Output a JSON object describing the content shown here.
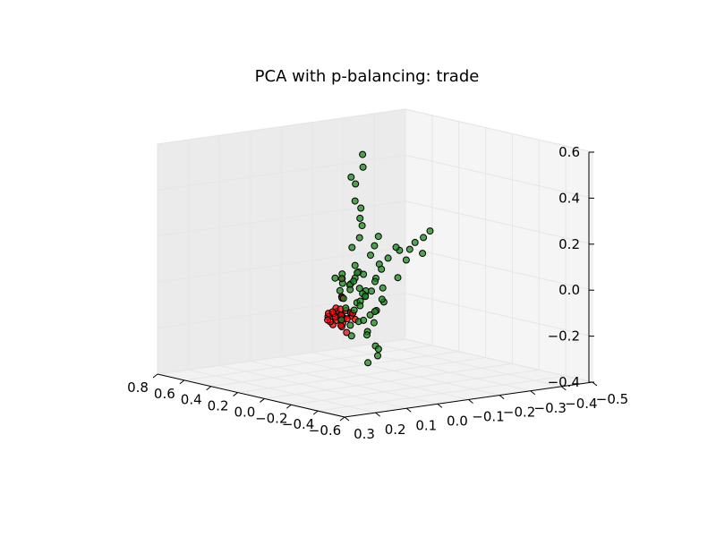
{
  "chart_data": {
    "type": "scatter",
    "title": "PCA with p-balancing: trade",
    "xlabel": "",
    "ylabel": "",
    "zlabel": "",
    "axes": {
      "x": {
        "ticks": [
          "−0.6",
          "−0.4",
          "−0.2",
          "0.0",
          "0.2",
          "0.4",
          "0.6",
          "0.8"
        ],
        "range": [
          -0.6,
          0.8
        ]
      },
      "y": {
        "ticks": [
          "0.3",
          "0.2",
          "0.1",
          "0.0",
          "−0.1",
          "−0.2",
          "−0.3",
          "−0.4",
          "−0.5"
        ],
        "range": [
          -0.5,
          0.3
        ]
      },
      "z": {
        "ticks": [
          "−0.4",
          "−0.2",
          "0.0",
          "0.2",
          "0.4",
          "0.6"
        ],
        "range": [
          -0.4,
          0.6
        ]
      }
    },
    "grid": true,
    "legend": "none",
    "series": [
      {
        "color": "#ff0000",
        "points": [
          [
            -0.45,
            0.25,
            0.0
          ],
          [
            -0.43,
            0.24,
            0.01
          ],
          [
            -0.44,
            0.26,
            -0.01
          ],
          [
            -0.42,
            0.23,
            0.0
          ],
          [
            -0.46,
            0.27,
            0.01
          ],
          [
            -0.41,
            0.22,
            -0.01
          ],
          [
            -0.4,
            0.24,
            0.02
          ],
          [
            -0.47,
            0.25,
            -0.02
          ],
          [
            -0.44,
            0.21,
            0.0
          ],
          [
            -0.43,
            0.28,
            0.01
          ],
          [
            -0.45,
            0.23,
            0.03
          ],
          [
            -0.42,
            0.26,
            -0.03
          ],
          [
            -0.39,
            0.22,
            0.0
          ],
          [
            -0.48,
            0.24,
            0.0
          ],
          [
            -0.41,
            0.27,
            0.02
          ],
          [
            -0.44,
            0.24,
            -0.04
          ],
          [
            -0.46,
            0.22,
            0.02
          ],
          [
            -0.43,
            0.2,
            0.01
          ],
          [
            -0.4,
            0.26,
            -0.02
          ],
          [
            -0.45,
            0.29,
            0.0
          ],
          [
            -0.42,
            0.25,
            0.04
          ],
          [
            -0.47,
            0.21,
            -0.01
          ],
          [
            -0.38,
            0.24,
            0.01
          ],
          [
            -0.44,
            0.27,
            0.03
          ],
          [
            -0.41,
            0.23,
            -0.04
          ],
          [
            -0.35,
            0.2,
            0.15
          ],
          [
            -0.3,
            0.18,
            0.06
          ],
          [
            -0.28,
            0.17,
            0.05
          ],
          [
            -0.43,
            0.22,
            -0.07
          ],
          [
            -0.36,
            0.21,
            0.02
          ]
        ]
      },
      {
        "color": "#1a8a1a",
        "points": [
          [
            0.1,
            -0.05,
            0.0
          ],
          [
            0.12,
            -0.03,
            0.02
          ],
          [
            0.08,
            -0.06,
            -0.03
          ],
          [
            0.15,
            -0.04,
            0.01
          ],
          [
            0.05,
            -0.02,
            -0.05
          ],
          [
            0.18,
            -0.07,
            0.03
          ],
          [
            0.11,
            -0.01,
            -0.08
          ],
          [
            0.07,
            -0.09,
            0.04
          ],
          [
            0.14,
            -0.05,
            -0.1
          ],
          [
            0.2,
            -0.03,
            -0.02
          ],
          [
            0.03,
            -0.04,
            0.0
          ],
          [
            0.09,
            -0.08,
            -0.12
          ],
          [
            0.16,
            -0.02,
            0.06
          ],
          [
            0.13,
            -0.06,
            -0.15
          ],
          [
            0.06,
            -0.03,
            0.08
          ],
          [
            0.22,
            -0.05,
            -0.06
          ],
          [
            0.02,
            -0.07,
            -0.09
          ],
          [
            0.17,
            -0.09,
            -0.04
          ],
          [
            0.1,
            -0.1,
            0.02
          ],
          [
            0.12,
            0.0,
            -0.13
          ],
          [
            0.08,
            -0.12,
            -0.07
          ],
          [
            0.19,
            -0.01,
            0.04
          ],
          [
            0.04,
            -0.05,
            -0.18
          ],
          [
            0.15,
            -0.11,
            -0.03
          ],
          [
            0.11,
            -0.04,
            0.1
          ],
          [
            0.25,
            -0.06,
            0.0
          ],
          [
            0.01,
            -0.03,
            -0.02
          ],
          [
            0.14,
            -0.08,
            0.05
          ],
          [
            0.09,
            -0.02,
            -0.2
          ],
          [
            0.21,
            -0.1,
            -0.08
          ],
          [
            0.1,
            -0.05,
            0.22
          ],
          [
            0.12,
            -0.06,
            0.3
          ],
          [
            0.11,
            -0.04,
            0.38
          ],
          [
            0.13,
            -0.05,
            0.45
          ],
          [
            0.12,
            -0.07,
            0.52
          ],
          [
            0.1,
            -0.06,
            0.58
          ],
          [
            0.14,
            -0.04,
            0.48
          ],
          [
            0.09,
            -0.05,
            0.35
          ],
          [
            0.15,
            -0.08,
            0.26
          ],
          [
            0.11,
            -0.03,
            0.18
          ],
          [
            0.3,
            -0.2,
            0.05
          ],
          [
            0.35,
            -0.25,
            0.06
          ],
          [
            0.38,
            -0.3,
            0.08
          ],
          [
            0.42,
            -0.35,
            0.07
          ],
          [
            0.45,
            -0.38,
            0.09
          ],
          [
            0.4,
            -0.33,
            0.03
          ],
          [
            0.33,
            -0.22,
            0.02
          ],
          [
            0.48,
            -0.42,
            0.1
          ],
          [
            0.36,
            -0.28,
            0.1
          ],
          [
            0.44,
            -0.4,
            0.04
          ],
          [
            0.3,
            -0.26,
            -0.02
          ],
          [
            0.5,
            -0.45,
            0.12
          ],
          [
            0.05,
            -0.08,
            -0.25
          ],
          [
            0.08,
            -0.1,
            -0.3
          ],
          [
            0.12,
            -0.12,
            -0.28
          ],
          [
            0.16,
            -0.1,
            -0.22
          ],
          [
            0.2,
            -0.14,
            -0.18
          ],
          [
            0.06,
            -0.06,
            -0.32
          ],
          [
            0.24,
            -0.16,
            -0.14
          ],
          [
            0.18,
            -0.12,
            0.12
          ],
          [
            0.22,
            -0.15,
            0.15
          ],
          [
            0.26,
            -0.18,
            0.18
          ],
          [
            0.28,
            -0.2,
            -0.1
          ],
          [
            0.32,
            -0.22,
            -0.06
          ],
          [
            0.0,
            -0.02,
            -0.12
          ],
          [
            -0.02,
            0.0,
            -0.05
          ],
          [
            0.03,
            0.01,
            -0.14
          ],
          [
            0.07,
            0.02,
            0.06
          ],
          [
            0.26,
            -0.1,
            0.0
          ],
          [
            0.28,
            -0.12,
            0.03
          ],
          [
            0.24,
            -0.08,
            -0.03
          ]
        ]
      }
    ]
  }
}
